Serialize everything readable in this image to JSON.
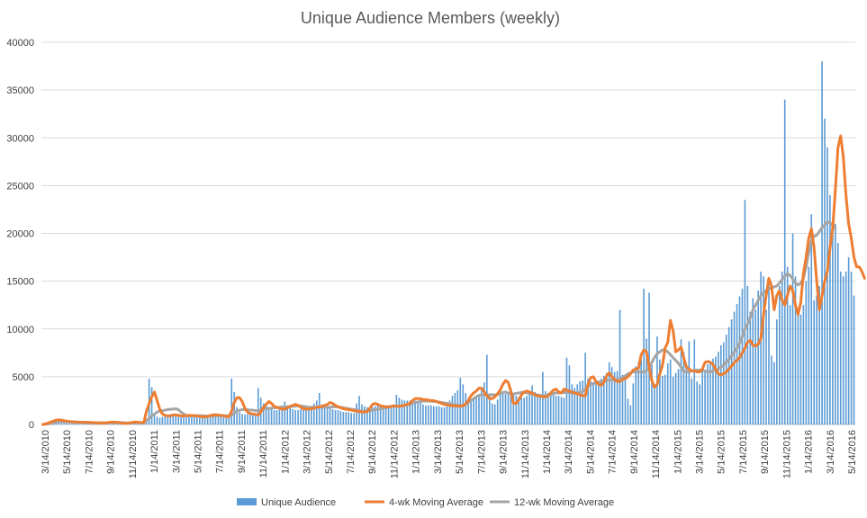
{
  "chart_data": {
    "type": "bar",
    "title": "Unique Audience Members (weekly)",
    "xlabel": "",
    "ylabel": "",
    "ylim": [
      0,
      40000
    ],
    "y_ticks": [
      0,
      5000,
      10000,
      15000,
      20000,
      25000,
      30000,
      35000,
      40000
    ],
    "x_tick_labels": [
      "3/14/2010",
      "5/14/2010",
      "7/14/2010",
      "9/14/2010",
      "11/14/2010",
      "1/14/2011",
      "3/14/2011",
      "5/14/2011",
      "7/14/2011",
      "9/14/2011",
      "11/14/2011",
      "1/14/2012",
      "3/14/2012",
      "5/14/2012",
      "7/14/2012",
      "9/14/2012",
      "11/14/2012",
      "1/14/2013",
      "3/14/2013",
      "5/14/2013",
      "7/14/2013",
      "9/14/2013",
      "11/14/2013",
      "1/14/2014",
      "3/14/2014",
      "5/14/2014",
      "7/14/2014",
      "9/14/2014",
      "11/14/2014",
      "1/14/2015",
      "3/14/2015",
      "5/14/2015",
      "7/14/2015",
      "9/14/2015",
      "11/14/2015",
      "1/14/2016",
      "3/14/2016",
      "5/14/2016"
    ],
    "grid": true,
    "legend_position": "bottom",
    "series": [
      {
        "name": "Unique Audience",
        "type": "bar",
        "color": "#5B9BD5",
        "values": [
          0,
          50,
          100,
          200,
          350,
          500,
          550,
          400,
          350,
          300,
          280,
          250,
          250,
          240,
          230,
          220,
          210,
          200,
          190,
          180,
          170,
          160,
          160,
          150,
          200,
          250,
          300,
          250,
          200,
          150,
          120,
          100,
          130,
          200,
          300,
          250,
          200,
          150,
          200,
          250,
          4800,
          3900,
          1200,
          800,
          700,
          800,
          900,
          1000,
          1100,
          1000,
          900,
          900,
          850,
          900,
          950,
          1000,
          950,
          900,
          850,
          800,
          750,
          800,
          950,
          1050,
          1100,
          1000,
          950,
          900,
          850,
          800,
          750,
          4800,
          3400,
          1800,
          1300,
          1100,
          1050,
          1100,
          1100,
          1000,
          900,
          3800,
          2800,
          2200,
          1900,
          1700,
          1600,
          1500,
          1500,
          1600,
          2000,
          2400,
          2000,
          1800,
          1600,
          1500,
          1500,
          1600,
          1700,
          1800,
          1900,
          1900,
          2200,
          2500,
          3300,
          2100,
          1900,
          1800,
          1700,
          1600,
          1500,
          1500,
          1400,
          1300,
          1300,
          1300,
          1200,
          1200,
          2200,
          3000,
          2100,
          1900,
          1800,
          1700,
          1800,
          1900,
          2000,
          1900,
          1800,
          1900,
          2000,
          2000,
          2100,
          3100,
          2800,
          2600,
          2500,
          2500,
          2500,
          2600,
          2500,
          2400,
          2300,
          2100,
          2000,
          2000,
          2000,
          1900,
          1900,
          1900,
          1800,
          1800,
          1900,
          2500,
          3000,
          3300,
          3600,
          4900,
          4200,
          3300,
          2800,
          2600,
          2700,
          2800,
          3200,
          3800,
          4400,
          7300,
          3100,
          2200,
          2100,
          2600,
          3600,
          3400,
          3200,
          3200,
          3200,
          3100,
          3000,
          2900,
          2800,
          2800,
          3000,
          3300,
          4100,
          3400,
          3100,
          3100,
          5500,
          3500,
          3300,
          3300,
          3200,
          3000,
          3000,
          2900,
          2800,
          7000,
          6200,
          4200,
          3800,
          4200,
          4500,
          4600,
          7500,
          4800,
          4500,
          4300,
          4400,
          4600,
          4800,
          5100,
          5400,
          6500,
          6000,
          5500,
          5600,
          12000,
          5200,
          4800,
          2700,
          2000,
          4300,
          6100,
          6500,
          6800,
          14200,
          9000,
          13800,
          6200,
          4200,
          9200,
          6800,
          5100,
          5200,
          6400,
          6800,
          5000,
          5400,
          5800,
          8900,
          7600,
          6100,
          8700,
          4800,
          8900,
          4500,
          4200,
          5900,
          5700,
          6300,
          6600,
          6900,
          7100,
          7600,
          8300,
          8600,
          9400,
          10200,
          11000,
          11800,
          12600,
          13400,
          14200,
          23500,
          14500,
          11800,
          13200,
          12000,
          14000,
          16000,
          15500,
          12000,
          15000,
          7200,
          6500,
          11000,
          14500,
          16000,
          34000,
          16500,
          12500,
          20000,
          15500,
          12000,
          11500,
          12500,
          15000,
          16500,
          22000,
          13000,
          13500,
          14500,
          38000,
          32000,
          29000,
          24000,
          20500,
          21000,
          19000,
          16000,
          15500,
          16000,
          17500,
          16000,
          13500
        ]
      },
      {
        "name": "4-wk Moving Average",
        "type": "line",
        "color": "#ED7D31",
        "values": [
          0,
          50,
          150,
          250,
          350,
          450,
          500,
          450,
          400,
          350,
          300,
          280,
          250,
          250,
          240,
          230,
          220,
          210,
          200,
          190,
          180,
          170,
          165,
          160,
          180,
          220,
          250,
          250,
          230,
          190,
          150,
          120,
          130,
          180,
          240,
          260,
          230,
          200,
          190,
          1400,
          2200,
          2900,
          3400,
          2500,
          1600,
          1100,
          950,
          900,
          900,
          1000,
          1000,
          950,
          900,
          900,
          920,
          950,
          950,
          920,
          880,
          840,
          800,
          800,
          840,
          940,
          1000,
          1020,
          990,
          950,
          900,
          850,
          800,
          1400,
          2300,
          2800,
          2800,
          2400,
          1700,
          1300,
          1150,
          1100,
          1050,
          1000,
          1300,
          1800,
          2100,
          2400,
          2200,
          1900,
          1800,
          1700,
          1600,
          1600,
          1750,
          1900,
          2000,
          2100,
          2000,
          1800,
          1650,
          1600,
          1600,
          1650,
          1700,
          1800,
          1850,
          1900,
          2000,
          2100,
          2300,
          2200,
          2000,
          1850,
          1750,
          1650,
          1600,
          1550,
          1500,
          1450,
          1400,
          1350,
          1300,
          1300,
          1350,
          1700,
          2100,
          2200,
          2100,
          1950,
          1900,
          1850,
          1850,
          1900,
          1950,
          1900,
          1900,
          1950,
          2000,
          2100,
          2200,
          2500,
          2700,
          2700,
          2700,
          2600,
          2600,
          2550,
          2500,
          2500,
          2400,
          2300,
          2200,
          2100,
          2050,
          2000,
          1950,
          1950,
          1900,
          1900,
          1950,
          2150,
          2500,
          3000,
          3300,
          3500,
          3800,
          3800,
          3400,
          3000,
          2700,
          2700,
          2900,
          3200,
          3600,
          4200,
          4600,
          4400,
          3500,
          2200,
          2200,
          2600,
          3100,
          3400,
          3500,
          3400,
          3300,
          3100,
          3000,
          2950,
          2900,
          2900,
          3000,
          3300,
          3600,
          3700,
          3400,
          3300,
          3700,
          3600,
          3500,
          3400,
          3300,
          3200,
          3100,
          3000,
          3000,
          4200,
          4900,
          5000,
          4500,
          4200,
          4100,
          4400,
          5100,
          5400,
          5000,
          4700,
          4500,
          4500,
          4700,
          4800,
          5000,
          5300,
          5700,
          5800,
          5900,
          7300,
          7800,
          7600,
          6000,
          4600,
          3900,
          4200,
          5300,
          6200,
          8000,
          8600,
          10900,
          9800,
          7600,
          7800,
          8100,
          7000,
          6000,
          5800,
          5600,
          5600,
          5500,
          5500,
          5800,
          6500,
          6600,
          6500,
          6300,
          5800,
          5300,
          5200,
          5300,
          5500,
          5800,
          6100,
          6500,
          6700,
          7000,
          7500,
          8000,
          8600,
          8800,
          8300,
          8200,
          8400,
          9000,
          11500,
          13500,
          15300,
          14500,
          12000,
          13500,
          14000,
          13000,
          12500,
          13500,
          14500,
          14000,
          12500,
          11500,
          12800,
          15800,
          17500,
          19500,
          20500,
          18500,
          15000,
          12000,
          13500,
          15000,
          16000,
          18500,
          20500,
          24500,
          29000,
          30200,
          28000,
          24000,
          21000,
          19500,
          17500,
          16500,
          16500,
          16000,
          15300
        ]
      },
      {
        "name": "12-wk Moving Average",
        "type": "line",
        "color": "#A5A5A5",
        "values": [
          0,
          20,
          60,
          110,
          170,
          230,
          280,
          300,
          310,
          310,
          300,
          290,
          280,
          260,
          250,
          240,
          230,
          220,
          210,
          200,
          190,
          180,
          175,
          170,
          175,
          180,
          190,
          200,
          200,
          195,
          185,
          170,
          165,
          170,
          180,
          190,
          195,
          195,
          195,
          400,
          650,
          900,
          1100,
          1300,
          1400,
          1450,
          1500,
          1550,
          1600,
          1600,
          1650,
          1550,
          1300,
          1100,
          950,
          900,
          900,
          920,
          930,
          930,
          920,
          900,
          880,
          870,
          880,
          900,
          920,
          930,
          930,
          920,
          900,
          1000,
          1200,
          1400,
          1500,
          1550,
          1550,
          1550,
          1500,
          1500,
          1450,
          1450,
          1500,
          1600,
          1650,
          1700,
          1700,
          1750,
          1750,
          1800,
          1800,
          1800,
          1850,
          1850,
          1900,
          1900,
          1950,
          1950,
          1900,
          1850,
          1800,
          1800,
          1800,
          1800,
          1800,
          1800,
          1800,
          1800,
          1800,
          1850,
          1850,
          1850,
          1800,
          1750,
          1700,
          1650,
          1600,
          1550,
          1500,
          1450,
          1400,
          1400,
          1400,
          1450,
          1500,
          1550,
          1600,
          1650,
          1700,
          1750,
          1800,
          1850,
          1900,
          1900,
          1900,
          1950,
          2000,
          2050,
          2100,
          2200,
          2300,
          2350,
          2400,
          2450,
          2450,
          2450,
          2450,
          2400,
          2400,
          2350,
          2300,
          2250,
          2200,
          2150,
          2100,
          2050,
          2000,
          2000,
          2000,
          2100,
          2300,
          2500,
          2700,
          2900,
          3050,
          3100,
          3100,
          3100,
          3100,
          3100,
          3100,
          3150,
          3250,
          3350,
          3400,
          3300,
          3200,
          3200,
          3250,
          3300,
          3350,
          3350,
          3300,
          3250,
          3200,
          3150,
          3100,
          3050,
          3000,
          3000,
          3050,
          3150,
          3250,
          3300,
          3300,
          3300,
          3350,
          3350,
          3350,
          3300,
          3300,
          3300,
          3350,
          3450,
          3700,
          4000,
          4200,
          4300,
          4300,
          4400,
          4500,
          4600,
          4650,
          4650,
          4650,
          4650,
          4700,
          4750,
          4900,
          5100,
          5300,
          5400,
          5500,
          5500,
          5500,
          5500,
          5500,
          5600,
          6000,
          6500,
          7000,
          7400,
          7600,
          7800,
          7800,
          7600,
          7300,
          7000,
          6700,
          6400,
          6000,
          5600,
          5500,
          5500,
          5600,
          5700,
          5700,
          5700,
          5700,
          5600,
          5500,
          5500,
          5600,
          5700,
          5800,
          6000,
          6200,
          6500,
          6800,
          7200,
          7600,
          8000,
          8500,
          9200,
          10000,
          10500,
          11200,
          12000,
          12500,
          13000,
          13500,
          13800,
          14000,
          14200,
          14300,
          14400,
          14500,
          14800,
          15200,
          15500,
          15800,
          15600,
          15200,
          14800,
          14600,
          14800,
          15300,
          16500,
          18000,
          19200,
          19700,
          19800,
          20200,
          20600,
          20900,
          21200,
          21100,
          20800,
          20500
        ]
      }
    ]
  }
}
